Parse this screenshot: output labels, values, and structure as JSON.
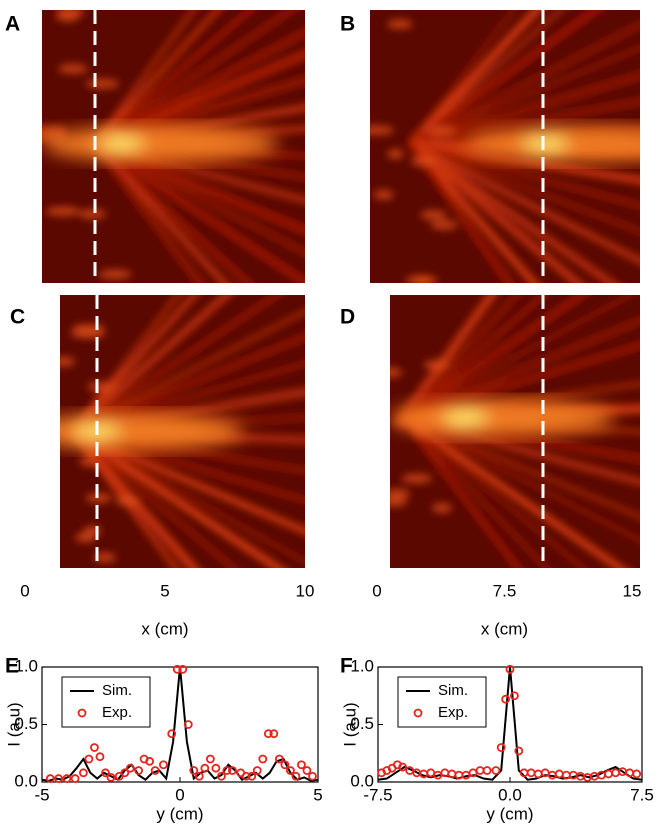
{
  "chart_data": [
    {
      "type": "heatmap",
      "panel": "A"
    },
    {
      "type": "heatmap",
      "panel": "B"
    },
    {
      "type": "heatmap",
      "panel": "C",
      "xlabel": "x (cm)",
      "xlim": [
        0,
        10
      ],
      "xticks": [
        0,
        5,
        10
      ]
    },
    {
      "type": "heatmap",
      "panel": "D",
      "xlabel": "x (cm)",
      "xlim": [
        0,
        15
      ],
      "xticks": [
        0,
        7.5,
        15
      ]
    },
    {
      "type": "line",
      "panel": "E",
      "xlabel": "y (cm)",
      "ylabel": "I (a.u)",
      "xlim": [
        -5,
        5
      ],
      "xticks": [
        -5,
        0,
        5
      ],
      "ylim": [
        0,
        1
      ],
      "yticks": [
        {
          "value": 0,
          "label": "0.0"
        },
        0.5,
        {
          "value": 1,
          "label": "1.0"
        }
      ],
      "legend": "upper left",
      "series": [
        {
          "name": "Sim.",
          "color": "#000000",
          "style": "line",
          "x": [
            -5,
            -4.75,
            -4.5,
            -4.25,
            -4,
            -3.75,
            -3.5,
            -3.25,
            -3,
            -2.75,
            -2.5,
            -2.25,
            -2,
            -1.75,
            -1.5,
            -1.25,
            -1,
            -0.75,
            -0.5,
            -0.25,
            0,
            0.25,
            0.5,
            0.75,
            1,
            1.25,
            1.5,
            1.75,
            2,
            2.25,
            2.5,
            2.75,
            3,
            3.25,
            3.5,
            3.75,
            4,
            4.25,
            4.5,
            4.75,
            5
          ],
          "values": [
            0.02,
            0.01,
            0.03,
            0.02,
            0.05,
            0.12,
            0.2,
            0.08,
            0.03,
            0.08,
            0.05,
            0.02,
            0.1,
            0.15,
            0.06,
            0.02,
            0.08,
            0.1,
            0.03,
            0.35,
            1.0,
            0.35,
            0.03,
            0.08,
            0.1,
            0.03,
            0.06,
            0.15,
            0.1,
            0.02,
            0.05,
            0.08,
            0.03,
            0.08,
            0.18,
            0.2,
            0.08,
            0.02,
            0.04,
            0.01,
            0.02
          ]
        },
        {
          "name": "Exp.",
          "color": "#e8231b",
          "style": "marker",
          "x": [
            -4.7,
            -4.4,
            -4.1,
            -3.8,
            -3.5,
            -3.3,
            -3.1,
            -2.9,
            -2.7,
            -2.5,
            -2.2,
            -2.0,
            -1.8,
            -1.5,
            -1.3,
            -1.1,
            -0.9,
            -0.6,
            -0.3,
            -0.1,
            0.1,
            0.3,
            0.5,
            0.7,
            0.9,
            1.1,
            1.3,
            1.5,
            1.7,
            1.9,
            2.2,
            2.4,
            2.6,
            2.8,
            3.0,
            3.2,
            3.4,
            3.6,
            3.8,
            4.0,
            4.2,
            4.4,
            4.6,
            4.8
          ],
          "values": [
            0.03,
            0.03,
            0.03,
            0.03,
            0.08,
            0.2,
            0.3,
            0.22,
            0.08,
            0.04,
            0.05,
            0.08,
            0.12,
            0.1,
            0.2,
            0.18,
            0.1,
            0.15,
            0.42,
            0.98,
            0.98,
            0.5,
            0.1,
            0.05,
            0.12,
            0.2,
            0.12,
            0.05,
            0.1,
            0.1,
            0.08,
            0.05,
            0.05,
            0.1,
            0.2,
            0.42,
            0.42,
            0.2,
            0.15,
            0.1,
            0.05,
            0.15,
            0.1,
            0.05
          ]
        }
      ]
    },
    {
      "type": "line",
      "panel": "F",
      "xlabel": "y (cm)",
      "ylabel": "I (a.u)",
      "xlim": [
        -7.5,
        7.5
      ],
      "xticks": [
        -7.5,
        {
          "value": 0,
          "label": "0.0"
        },
        7.5
      ],
      "ylim": [
        0,
        1
      ],
      "yticks": [
        {
          "value": 0,
          "label": "0.0"
        },
        0.5,
        {
          "value": 1,
          "label": "1.0"
        }
      ],
      "legend": "upper left",
      "series": [
        {
          "name": "Sim.",
          "color": "#000000",
          "style": "line",
          "x": [
            -7.5,
            -7,
            -6.5,
            -6,
            -5.5,
            -5,
            -4.5,
            -4,
            -3.5,
            -3,
            -2.5,
            -2,
            -1.5,
            -1,
            -0.5,
            0,
            0.5,
            1,
            1.5,
            2,
            2.5,
            3,
            3.5,
            4,
            4.5,
            5,
            5.5,
            6,
            6.5,
            7,
            7.5
          ],
          "values": [
            0.02,
            0.03,
            0.08,
            0.13,
            0.1,
            0.06,
            0.04,
            0.06,
            0.05,
            0.03,
            0.05,
            0.06,
            0.03,
            0.02,
            0.1,
            1.0,
            0.1,
            0.02,
            0.03,
            0.06,
            0.05,
            0.03,
            0.04,
            0.06,
            0.04,
            0.06,
            0.1,
            0.13,
            0.08,
            0.03,
            0.02
          ]
        },
        {
          "name": "Exp.",
          "color": "#e8231b",
          "style": "marker",
          "x": [
            -7.3,
            -7,
            -6.7,
            -6.4,
            -6.1,
            -5.7,
            -5.3,
            -4.9,
            -4.5,
            -4.1,
            -3.7,
            -3.3,
            -2.9,
            -2.5,
            -2.1,
            -1.7,
            -1.3,
            -0.8,
            -0.5,
            -0.25,
            0,
            0.25,
            0.5,
            0.8,
            1.2,
            1.6,
            2,
            2.4,
            2.8,
            3.2,
            3.6,
            4,
            4.4,
            4.8,
            5.2,
            5.6,
            6,
            6.4,
            6.8,
            7.2
          ],
          "values": [
            0.08,
            0.1,
            0.12,
            0.15,
            0.13,
            0.1,
            0.08,
            0.07,
            0.08,
            0.06,
            0.08,
            0.07,
            0.06,
            0.06,
            0.08,
            0.1,
            0.1,
            0.1,
            0.3,
            0.72,
            0.98,
            0.75,
            0.27,
            0.08,
            0.08,
            0.07,
            0.08,
            0.06,
            0.07,
            0.06,
            0.06,
            0.05,
            0.04,
            0.05,
            0.06,
            0.07,
            0.08,
            0.09,
            0.08,
            0.07
          ]
        }
      ]
    }
  ]
}
